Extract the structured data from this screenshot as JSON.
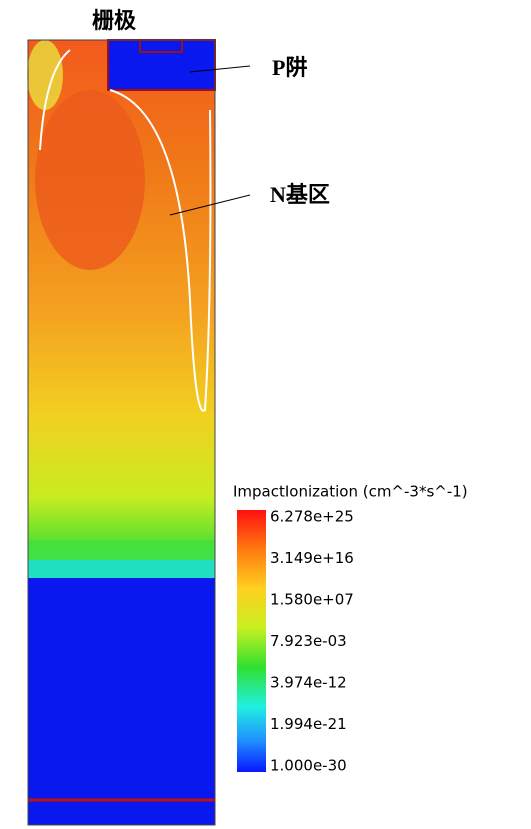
{
  "annotations": {
    "gate": "栅极",
    "p_well": "P阱",
    "n_base": "N基区"
  },
  "legend": {
    "title": "ImpactIonization (cm^-3*s^-1)",
    "labels": [
      "6.278e+25",
      "3.149e+16",
      "1.580e+07",
      "7.923e-03",
      "3.974e-12",
      "1.994e-21",
      "1.000e-30"
    ]
  }
}
